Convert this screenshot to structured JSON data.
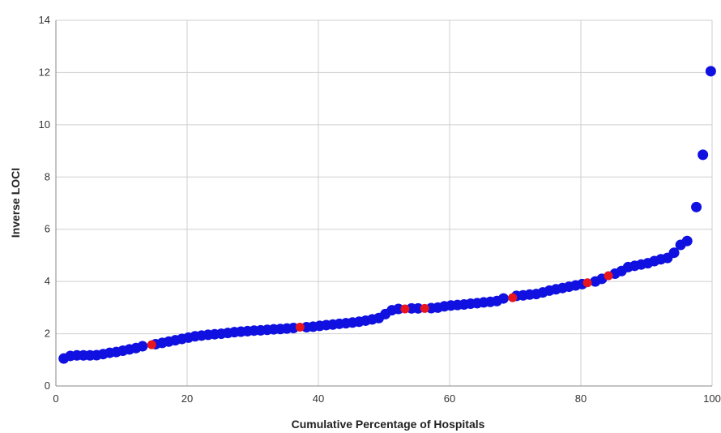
{
  "chart_data": {
    "type": "scatter",
    "title": "",
    "xlabel": "Cumulative Percentage of Hospitals",
    "ylabel": "Inverse LOCI",
    "xlim": [
      0,
      100
    ],
    "ylim": [
      0,
      14
    ],
    "xticks": [
      "0",
      "20",
      "40",
      "60",
      "80",
      "100"
    ],
    "yticks": [
      "0",
      "2",
      "4",
      "6",
      "8",
      "10",
      "12",
      "14"
    ],
    "grid": true,
    "legend": "none",
    "colors": {
      "default": "#1010e0",
      "highlighted": "#e8141e"
    },
    "series": [
      {
        "color": "#1010e0",
        "points": [
          [
            1.2,
            1.05
          ],
          [
            2.2,
            1.15
          ],
          [
            3.2,
            1.17
          ],
          [
            4.2,
            1.17
          ],
          [
            5.2,
            1.17
          ],
          [
            6.2,
            1.18
          ],
          [
            7.2,
            1.22
          ],
          [
            8.2,
            1.27
          ],
          [
            9.2,
            1.3
          ],
          [
            10.2,
            1.35
          ],
          [
            11.2,
            1.4
          ],
          [
            12.2,
            1.45
          ],
          [
            13.2,
            1.52
          ],
          [
            15.2,
            1.6
          ],
          [
            16.2,
            1.65
          ],
          [
            17.2,
            1.7
          ],
          [
            18.2,
            1.75
          ],
          [
            19.2,
            1.8
          ],
          [
            20.2,
            1.85
          ],
          [
            21.2,
            1.9
          ],
          [
            22.2,
            1.93
          ],
          [
            23.2,
            1.96
          ],
          [
            24.2,
            1.98
          ],
          [
            25.2,
            2.0
          ],
          [
            26.2,
            2.03
          ],
          [
            27.2,
            2.06
          ],
          [
            28.2,
            2.08
          ],
          [
            29.2,
            2.1
          ],
          [
            30.2,
            2.12
          ],
          [
            31.2,
            2.13
          ],
          [
            32.2,
            2.15
          ],
          [
            33.2,
            2.17
          ],
          [
            34.2,
            2.18
          ],
          [
            35.2,
            2.2
          ],
          [
            36.2,
            2.22
          ],
          [
            38.2,
            2.25
          ],
          [
            39.2,
            2.27
          ],
          [
            40.2,
            2.3
          ],
          [
            41.2,
            2.33
          ],
          [
            42.2,
            2.35
          ],
          [
            43.2,
            2.38
          ],
          [
            44.2,
            2.4
          ],
          [
            45.2,
            2.43
          ],
          [
            46.2,
            2.46
          ],
          [
            47.2,
            2.5
          ],
          [
            48.2,
            2.55
          ],
          [
            49.2,
            2.6
          ],
          [
            50.2,
            2.75
          ],
          [
            51.2,
            2.9
          ],
          [
            52.2,
            2.95
          ],
          [
            54.2,
            2.97
          ],
          [
            55.2,
            2.97
          ],
          [
            57.2,
            2.98
          ],
          [
            58.2,
            3.0
          ],
          [
            59.2,
            3.05
          ],
          [
            60.2,
            3.08
          ],
          [
            61.2,
            3.1
          ],
          [
            62.2,
            3.12
          ],
          [
            63.2,
            3.15
          ],
          [
            64.2,
            3.17
          ],
          [
            65.2,
            3.2
          ],
          [
            66.2,
            3.22
          ],
          [
            67.2,
            3.25
          ],
          [
            68.2,
            3.35
          ],
          [
            70.2,
            3.45
          ],
          [
            71.2,
            3.47
          ],
          [
            72.2,
            3.5
          ],
          [
            73.2,
            3.52
          ],
          [
            74.2,
            3.58
          ],
          [
            75.2,
            3.65
          ],
          [
            76.2,
            3.7
          ],
          [
            77.2,
            3.75
          ],
          [
            78.2,
            3.8
          ],
          [
            79.2,
            3.85
          ],
          [
            80.2,
            3.9
          ],
          [
            82.2,
            4.0
          ],
          [
            83.2,
            4.1
          ],
          [
            85.2,
            4.3
          ],
          [
            86.2,
            4.4
          ],
          [
            87.2,
            4.55
          ],
          [
            88.2,
            4.6
          ],
          [
            89.2,
            4.65
          ],
          [
            90.2,
            4.7
          ],
          [
            91.2,
            4.78
          ],
          [
            92.2,
            4.85
          ],
          [
            93.2,
            4.9
          ],
          [
            94.2,
            5.1
          ],
          [
            95.2,
            5.4
          ],
          [
            96.2,
            5.55
          ],
          [
            97.6,
            6.85
          ],
          [
            98.6,
            8.85
          ],
          [
            99.8,
            12.05
          ]
        ]
      },
      {
        "color": "#e8141e",
        "points": [
          [
            14.6,
            1.58
          ],
          [
            37.2,
            2.25
          ],
          [
            53.2,
            2.95
          ],
          [
            56.2,
            2.97
          ],
          [
            69.6,
            3.38
          ],
          [
            81.0,
            3.95
          ],
          [
            84.2,
            4.22
          ]
        ]
      }
    ]
  }
}
